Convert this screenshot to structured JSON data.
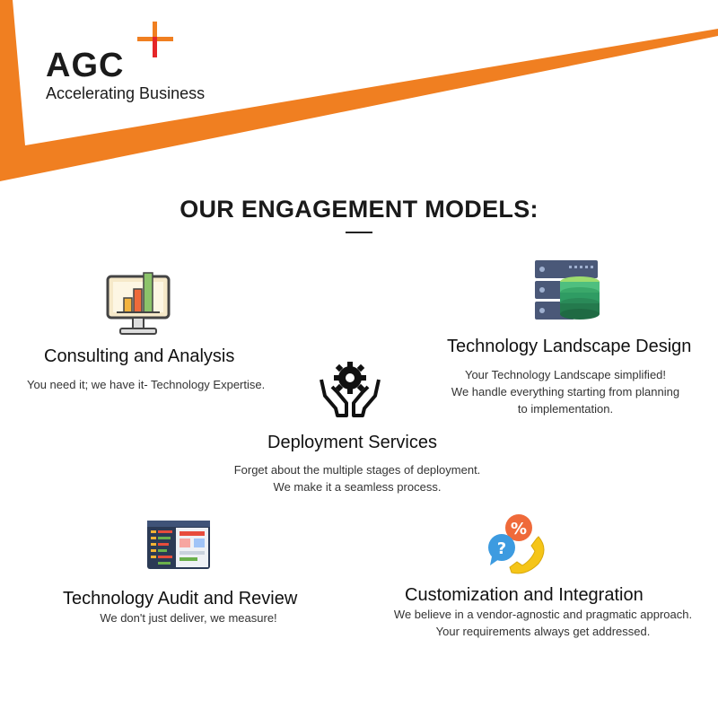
{
  "brand": {
    "name": "AGC",
    "tagline": "Accelerating Business",
    "accent": "#f07f21",
    "cross_red": "#e52629"
  },
  "heading": "OUR ENGAGEMENT MODELS:",
  "models": [
    {
      "title": "Consulting and Analysis",
      "lines": [
        "You need it; we have it- Technology Expertise."
      ],
      "icon": "monitor-bar-chart-icon"
    },
    {
      "title": "Technology Landscape Design",
      "lines": [
        "Your Technology Landscape simplified!",
        "We handle everything starting from planning",
        "to implementation."
      ],
      "icon": "server-database-icon"
    },
    {
      "title": "Deployment Services",
      "lines": [
        "Forget about the multiple stages of deployment.",
        "We make it a seamless process."
      ],
      "icon": "hands-gear-icon"
    },
    {
      "title": "Technology Audit and Review",
      "lines": [
        "We don't just deliver, we measure!"
      ],
      "icon": "code-review-window-icon"
    },
    {
      "title": "Customization and Integration",
      "lines": [
        "We believe in a vendor-agnostic and pragmatic approach.",
        "Your requirements always get addressed."
      ],
      "icon": "chat-phone-percent-icon"
    }
  ]
}
